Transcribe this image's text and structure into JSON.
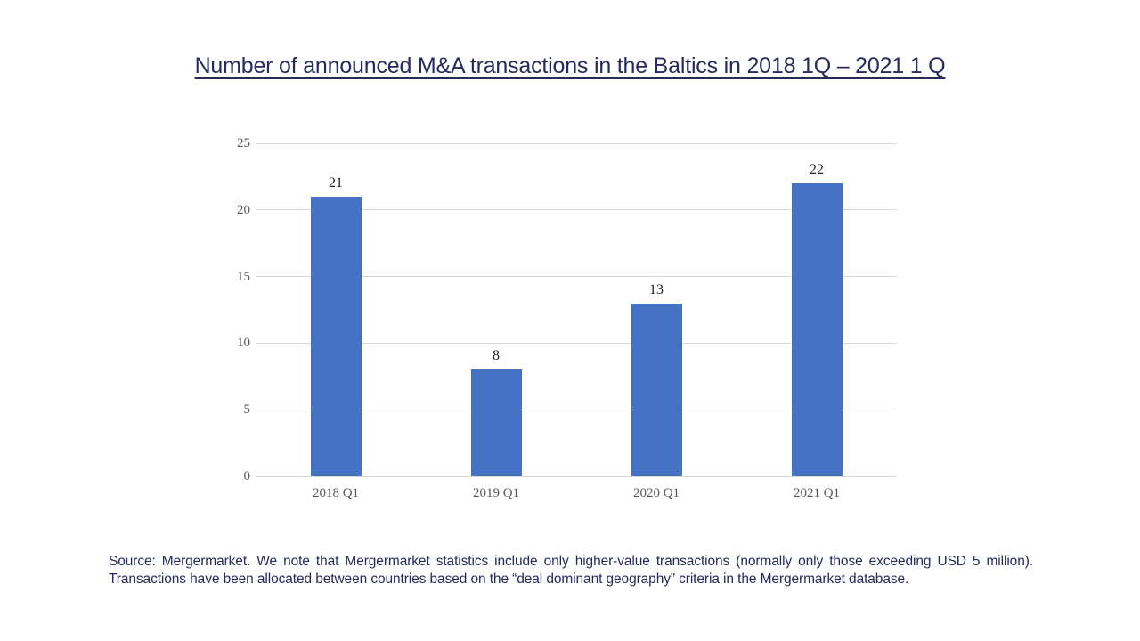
{
  "title": {
    "text": "Number of announced M&A transactions in the Baltics in 2018 1Q – 2021 1 Q",
    "color": "#262A5E"
  },
  "chart_data": {
    "type": "bar",
    "title": "Number of announced M&A transactions in the Baltics in 2018 1Q – 2021 1 Q",
    "categories": [
      "2018 Q1",
      "2019 Q1",
      "2020 Q1",
      "2021 Q1"
    ],
    "values": [
      21,
      8,
      13,
      22
    ],
    "xlabel": "",
    "ylabel": "",
    "ylim": [
      0,
      25
    ],
    "yticks": [
      0,
      5,
      10,
      15,
      20,
      25
    ],
    "grid": true,
    "legend": "none",
    "bar_color": "#4472C4",
    "gridline_color": "#D9D9D9",
    "axis_label_color": "#595959",
    "data_label_color": "#1F1F1F"
  },
  "footnote": {
    "line1": "Source: Mergermarket. We note that Mergermarket statistics include only higher-value transactions (normally only those exceeding USD 5 million).",
    "line2": "Transactions have been allocated between countries based on the “deal dominant geography” criteria in the Mergermarket database.",
    "color": "#262A5E"
  }
}
